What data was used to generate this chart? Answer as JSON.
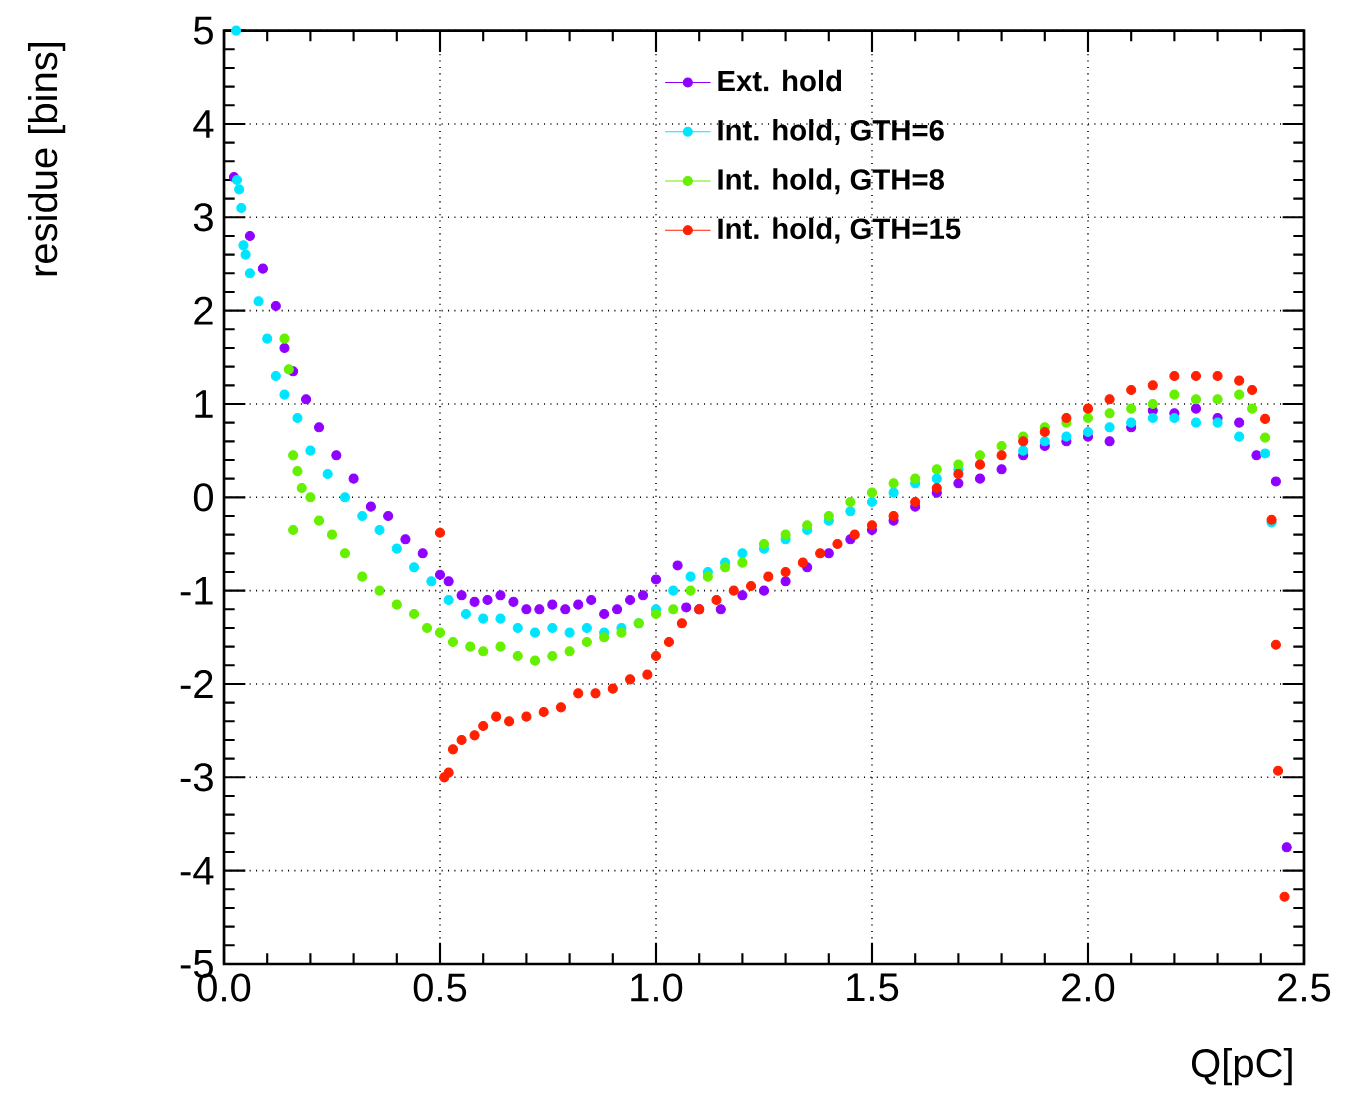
{
  "chart_data": {
    "type": "scatter",
    "xlabel": "Q[pC]",
    "ylabel": "residue [bins]",
    "xlim": [
      0,
      2.5
    ],
    "ylim": [
      -5,
      5
    ],
    "xticks": [
      {
        "value": 0,
        "label": "0.0"
      },
      {
        "value": 0.5,
        "label": "0.5"
      },
      {
        "value": 1,
        "label": "1.0"
      },
      {
        "value": 1.5,
        "label": "1.5"
      },
      {
        "value": 2,
        "label": "2.0"
      },
      {
        "value": 2.5,
        "label": "2.5"
      }
    ],
    "yticks": [
      -5,
      -4,
      -3,
      -2,
      -1,
      0,
      1,
      2,
      3,
      4,
      5
    ],
    "grid": true,
    "legend": "top right",
    "marker": "circle",
    "series": [
      {
        "name": "Ext. hold",
        "color": "#8f00ff",
        "x": [
          0.023,
          0.06,
          0.09,
          0.12,
          0.14,
          0.16,
          0.19,
          0.22,
          0.26,
          0.3,
          0.34,
          0.38,
          0.42,
          0.46,
          0.5,
          0.52,
          0.55,
          0.58,
          0.61,
          0.64,
          0.67,
          0.7,
          0.73,
          0.76,
          0.79,
          0.82,
          0.85,
          0.88,
          0.91,
          0.94,
          0.97,
          1.0,
          1.05,
          1.07,
          1.1,
          1.15,
          1.2,
          1.25,
          1.3,
          1.35,
          1.4,
          1.45,
          1.5,
          1.55,
          1.6,
          1.65,
          1.7,
          1.75,
          1.8,
          1.85,
          1.9,
          1.95,
          2.0,
          2.05,
          2.1,
          2.15,
          2.2,
          2.25,
          2.3,
          2.35,
          2.39,
          2.435,
          2.46
        ],
        "values": [
          3.43,
          2.8,
          2.45,
          2.05,
          1.6,
          1.35,
          1.05,
          0.75,
          0.45,
          0.2,
          -0.1,
          -0.2,
          -0.45,
          -0.6,
          -0.83,
          -0.9,
          -1.05,
          -1.12,
          -1.1,
          -1.05,
          -1.12,
          -1.2,
          -1.2,
          -1.15,
          -1.2,
          -1.15,
          -1.1,
          -1.25,
          -1.2,
          -1.1,
          -1.05,
          -0.88,
          -0.73,
          -1.18,
          -1.2,
          -1.2,
          -1.05,
          -1.0,
          -0.9,
          -0.75,
          -0.6,
          -0.45,
          -0.35,
          -0.25,
          -0.1,
          0.05,
          0.15,
          0.2,
          0.3,
          0.45,
          0.55,
          0.6,
          0.65,
          0.6,
          0.75,
          0.93,
          0.9,
          0.95,
          0.85,
          0.8,
          0.45,
          0.17,
          -3.75
        ]
      },
      {
        "name": "Int. hold, GTH=6",
        "color": "#00e5ff",
        "x": [
          0.028,
          0.03,
          0.035,
          0.04,
          0.045,
          0.05,
          0.06,
          0.08,
          0.1,
          0.12,
          0.14,
          0.17,
          0.2,
          0.24,
          0.28,
          0.32,
          0.36,
          0.4,
          0.44,
          0.48,
          0.52,
          0.56,
          0.6,
          0.64,
          0.68,
          0.72,
          0.76,
          0.8,
          0.84,
          0.88,
          0.92,
          0.96,
          1.0,
          1.04,
          1.08,
          1.12,
          1.16,
          1.2,
          1.25,
          1.3,
          1.35,
          1.4,
          1.45,
          1.5,
          1.55,
          1.6,
          1.65,
          1.7,
          1.75,
          1.8,
          1.85,
          1.9,
          1.95,
          2.0,
          2.05,
          2.1,
          2.15,
          2.2,
          2.25,
          2.3,
          2.35,
          2.41,
          2.425
        ],
        "values": [
          5.0,
          3.4,
          3.3,
          3.1,
          2.7,
          2.6,
          2.4,
          2.1,
          1.7,
          1.3,
          1.1,
          0.85,
          0.5,
          0.25,
          0.0,
          -0.2,
          -0.35,
          -0.55,
          -0.75,
          -0.9,
          -1.1,
          -1.25,
          -1.3,
          -1.3,
          -1.4,
          -1.45,
          -1.4,
          -1.45,
          -1.4,
          -1.45,
          -1.4,
          -1.35,
          -1.2,
          -1.0,
          -0.85,
          -0.8,
          -0.7,
          -0.6,
          -0.55,
          -0.45,
          -0.35,
          -0.25,
          -0.15,
          -0.05,
          0.05,
          0.15,
          0.2,
          0.3,
          null,
          null,
          0.5,
          0.6,
          0.65,
          0.7,
          0.75,
          0.8,
          0.85,
          0.85,
          0.8,
          0.8,
          0.65,
          0.47,
          -0.27
        ]
      },
      {
        "name": "Int. hold, GTH=8",
        "color": "#66f000",
        "x": [
          0.14,
          0.15,
          0.16,
          0.16,
          0.17,
          0.18,
          0.2,
          0.22,
          0.25,
          0.28,
          0.32,
          0.36,
          0.4,
          0.44,
          0.47,
          0.5,
          0.53,
          0.57,
          0.6,
          0.64,
          0.68,
          0.72,
          0.76,
          0.8,
          0.84,
          0.88,
          0.92,
          0.96,
          1.0,
          1.04,
          1.08,
          1.12,
          1.16,
          1.2,
          1.25,
          1.3,
          1.35,
          1.4,
          1.45,
          1.5,
          1.55,
          1.6,
          1.65,
          1.7,
          1.75,
          1.8,
          1.85,
          1.9,
          1.95,
          2.0,
          2.05,
          2.1,
          2.15,
          2.2,
          2.25,
          2.3,
          2.35,
          2.38,
          2.41
        ],
        "values": [
          1.7,
          1.37,
          0.45,
          -0.35,
          0.28,
          0.1,
          0.0,
          -0.25,
          -0.4,
          -0.6,
          -0.85,
          -1.0,
          -1.15,
          -1.25,
          -1.4,
          -1.45,
          -1.55,
          -1.6,
          -1.65,
          -1.6,
          -1.7,
          -1.75,
          -1.7,
          -1.65,
          -1.55,
          -1.5,
          -1.45,
          -1.35,
          -1.25,
          -1.2,
          -1.0,
          -0.85,
          -0.75,
          -0.7,
          -0.5,
          -0.4,
          -0.3,
          -0.2,
          -0.05,
          0.05,
          0.15,
          0.2,
          0.3,
          0.35,
          0.45,
          0.55,
          0.65,
          0.75,
          0.8,
          0.85,
          0.9,
          0.95,
          1.0,
          1.1,
          1.05,
          1.05,
          1.1,
          0.95,
          0.64
        ]
      },
      {
        "name": "Int. hold, GTH=15",
        "color": "#ff2000",
        "x": [
          0.5,
          0.51,
          0.52,
          0.53,
          0.55,
          0.58,
          0.6,
          0.63,
          0.66,
          0.7,
          0.74,
          0.78,
          0.82,
          0.86,
          0.9,
          0.94,
          0.98,
          1.0,
          1.03,
          1.06,
          1.1,
          1.14,
          1.18,
          1.22,
          1.26,
          1.3,
          1.34,
          1.38,
          1.42,
          1.46,
          1.5,
          1.55,
          1.6,
          1.65,
          1.7,
          1.75,
          1.8,
          1.85,
          1.9,
          1.95,
          2.0,
          2.05,
          2.1,
          2.15,
          2.2,
          2.25,
          2.3,
          2.35,
          2.38,
          2.41,
          2.425,
          2.435,
          2.44,
          2.455
        ],
        "values": [
          -0.38,
          -3.0,
          -2.95,
          -2.7,
          -2.6,
          -2.55,
          -2.45,
          -2.35,
          -2.4,
          -2.35,
          -2.3,
          -2.25,
          -2.1,
          -2.1,
          -2.05,
          -1.95,
          -1.9,
          -1.7,
          -1.55,
          -1.35,
          -1.2,
          -1.1,
          -1.0,
          -0.95,
          -0.85,
          -0.8,
          -0.7,
          -0.6,
          -0.5,
          -0.4,
          -0.3,
          -0.2,
          -0.05,
          0.1,
          0.25,
          0.35,
          0.45,
          0.6,
          0.7,
          0.85,
          0.95,
          1.05,
          1.15,
          1.2,
          1.3,
          1.3,
          1.3,
          1.25,
          1.15,
          0.84,
          -0.24,
          -1.58,
          -2.93,
          -4.28
        ]
      }
    ]
  }
}
